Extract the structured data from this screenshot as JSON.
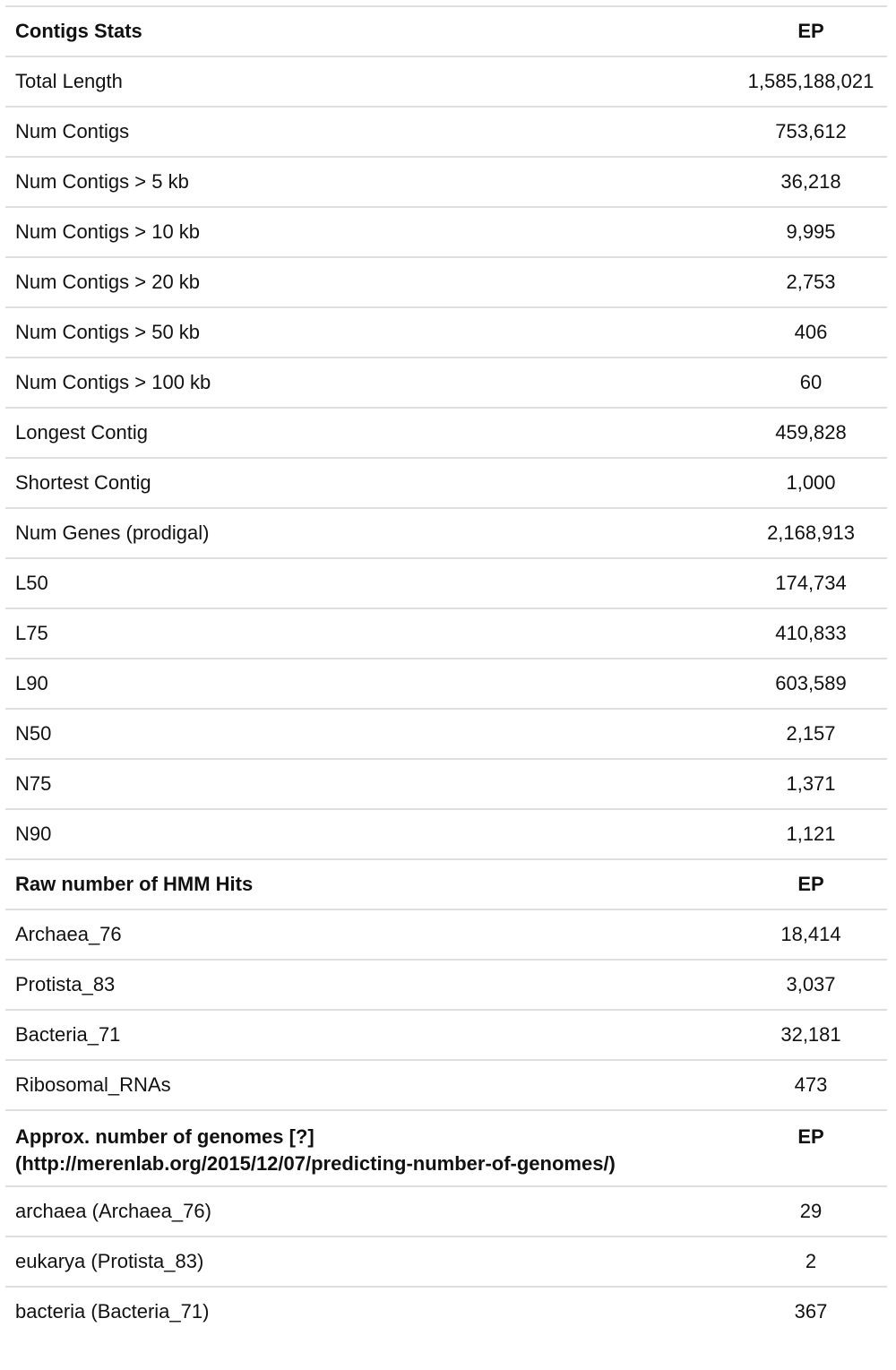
{
  "sections": [
    {
      "header": {
        "label": "Contigs Stats",
        "value": "EP"
      },
      "rows": [
        {
          "label": "Total Length",
          "value": "1,585,188,021"
        },
        {
          "label": "Num Contigs",
          "value": "753,612"
        },
        {
          "label": "Num Contigs > 5 kb",
          "value": "36,218"
        },
        {
          "label": "Num Contigs > 10 kb",
          "value": "9,995"
        },
        {
          "label": "Num Contigs > 20 kb",
          "value": "2,753"
        },
        {
          "label": "Num Contigs > 50 kb",
          "value": "406"
        },
        {
          "label": "Num Contigs > 100 kb",
          "value": "60"
        },
        {
          "label": "Longest Contig",
          "value": "459,828"
        },
        {
          "label": "Shortest Contig",
          "value": "1,000"
        },
        {
          "label": "Num Genes (prodigal)",
          "value": "2,168,913"
        },
        {
          "label": "L50",
          "value": "174,734"
        },
        {
          "label": "L75",
          "value": "410,833"
        },
        {
          "label": "L90",
          "value": "603,589"
        },
        {
          "label": "N50",
          "value": "2,157"
        },
        {
          "label": "N75",
          "value": "1,371"
        },
        {
          "label": "N90",
          "value": "1,121"
        }
      ]
    },
    {
      "header": {
        "label": "Raw number of HMM Hits",
        "value": "EP"
      },
      "rows": [
        {
          "label": "Archaea_76",
          "value": "18,414"
        },
        {
          "label": "Protista_83",
          "value": "3,037"
        },
        {
          "label": "Bacteria_71",
          "value": "32,181"
        },
        {
          "label": "Ribosomal_RNAs",
          "value": "473"
        }
      ]
    },
    {
      "header": {
        "label_line1": "Approx. number of genomes [?]",
        "label_line2": "(http://merenlab.org/2015/12/07/predicting-number-of-genomes/)",
        "value": "EP"
      },
      "rows": [
        {
          "label": "archaea (Archaea_76)",
          "value": "29"
        },
        {
          "label": "eukarya (Protista_83)",
          "value": "2"
        },
        {
          "label": "bacteria (Bacteria_71)",
          "value": "367"
        }
      ]
    }
  ]
}
